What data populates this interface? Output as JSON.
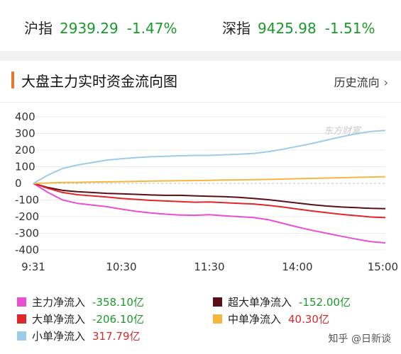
{
  "indices": [
    {
      "name": "沪指",
      "points": "2939.29",
      "change": "-1.47%"
    },
    {
      "name": "深指",
      "points": "9425.98",
      "change": "-1.51%"
    }
  ],
  "card": {
    "title": "大盘主力实时资金流向图",
    "history_link": "历史流向",
    "history_chevron": "›"
  },
  "watermark": "东方财富",
  "footer_watermark": "知乎 @日新谈",
  "legend": [
    {
      "label": "主力净流入",
      "value": "-358.10亿",
      "color": "#e84fd3",
      "sign": "neg"
    },
    {
      "label": "超大单净流入",
      "value": "-152.00亿",
      "color": "#5a0f16",
      "sign": "neg"
    },
    {
      "label": "大单净流入",
      "value": "-206.10亿",
      "color": "#e0262b",
      "sign": "neg"
    },
    {
      "label": "中单净流入",
      "value": "40.30亿",
      "color": "#f4b63e",
      "sign": "pos"
    },
    {
      "label": "小单净流入",
      "value": "317.79亿",
      "color": "#9ecbe8",
      "sign": "pos"
    }
  ],
  "chart_data": {
    "type": "line",
    "title": "大盘主力实时资金流向图",
    "ylim": [
      -400,
      400
    ],
    "yticks": [
      400,
      300,
      200,
      100,
      0,
      -100,
      -200,
      -300,
      -400
    ],
    "xticks": [
      "9:31",
      "10:30",
      "11:30",
      "14:00",
      "15:00"
    ],
    "x": [
      "9:31",
      "9:40",
      "9:50",
      "10:00",
      "10:10",
      "10:20",
      "10:30",
      "10:40",
      "10:50",
      "11:00",
      "11:10",
      "11:20",
      "11:30",
      "13:10",
      "13:20",
      "13:30",
      "13:40",
      "13:50",
      "14:00",
      "14:10",
      "14:20",
      "14:30",
      "14:40",
      "14:50",
      "15:00"
    ],
    "series": [
      {
        "name": "主力净流入",
        "color": "#e84fd3",
        "values": [
          0,
          -55,
          -100,
          -120,
          -130,
          -140,
          -155,
          -168,
          -178,
          -185,
          -190,
          -192,
          -188,
          -195,
          -200,
          -205,
          -218,
          -240,
          -262,
          -282,
          -300,
          -318,
          -335,
          -350,
          -358
        ]
      },
      {
        "name": "超大单净流入",
        "color": "#5a0f16",
        "values": [
          0,
          -25,
          -42,
          -50,
          -55,
          -60,
          -63,
          -66,
          -70,
          -72,
          -72,
          -75,
          -78,
          -80,
          -84,
          -90,
          -98,
          -108,
          -118,
          -128,
          -136,
          -142,
          -146,
          -150,
          -152
        ]
      },
      {
        "name": "大单净流入",
        "color": "#e0262b",
        "values": [
          0,
          -30,
          -55,
          -68,
          -75,
          -82,
          -90,
          -96,
          -102,
          -106,
          -110,
          -113,
          -112,
          -116,
          -120,
          -124,
          -132,
          -142,
          -154,
          -166,
          -176,
          -186,
          -194,
          -202,
          -206
        ]
      },
      {
        "name": "中单净流入",
        "color": "#f4b63e",
        "values": [
          0,
          2,
          5,
          6,
          8,
          9,
          10,
          12,
          14,
          15,
          16,
          17,
          18,
          20,
          21,
          22,
          24,
          26,
          28,
          30,
          32,
          34,
          36,
          38,
          40
        ]
      },
      {
        "name": "小单净流入",
        "color": "#9ecbe8",
        "values": [
          0,
          50,
          90,
          110,
          125,
          140,
          148,
          155,
          160,
          163,
          166,
          168,
          168,
          172,
          175,
          180,
          190,
          205,
          222,
          240,
          260,
          280,
          298,
          312,
          318
        ]
      }
    ]
  }
}
